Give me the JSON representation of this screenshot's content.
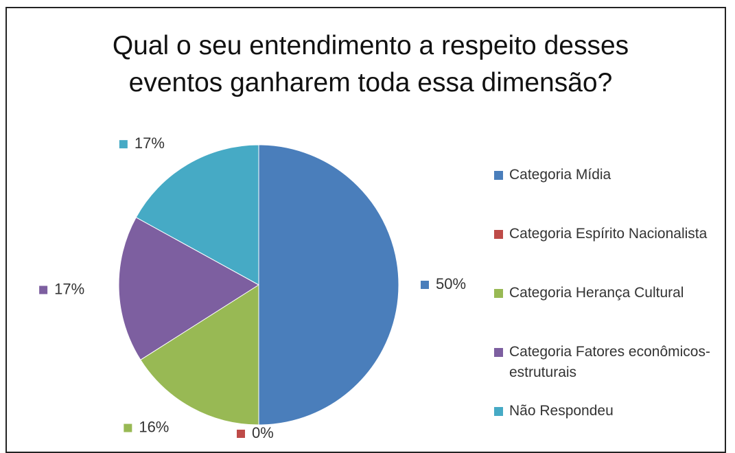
{
  "chart_data": {
    "type": "pie",
    "title": "Qual o seu entendimento a respeito desses eventos ganharem toda essa dimensão?",
    "categories": [
      "Categoria Mídia",
      "Categoria Espírito Nacionalista",
      "Categoria Herança Cultural",
      "Categoria Fatores econômicos-estruturais",
      "Não Respondeu"
    ],
    "values": [
      50,
      0,
      16,
      17,
      17
    ],
    "value_labels": [
      "50%",
      "0%",
      "16%",
      "17%",
      "17%"
    ],
    "colors": [
      "#4a7ebb",
      "#be4b48",
      "#98b954",
      "#7d5fa0",
      "#46aac5"
    ],
    "legend": "right"
  }
}
